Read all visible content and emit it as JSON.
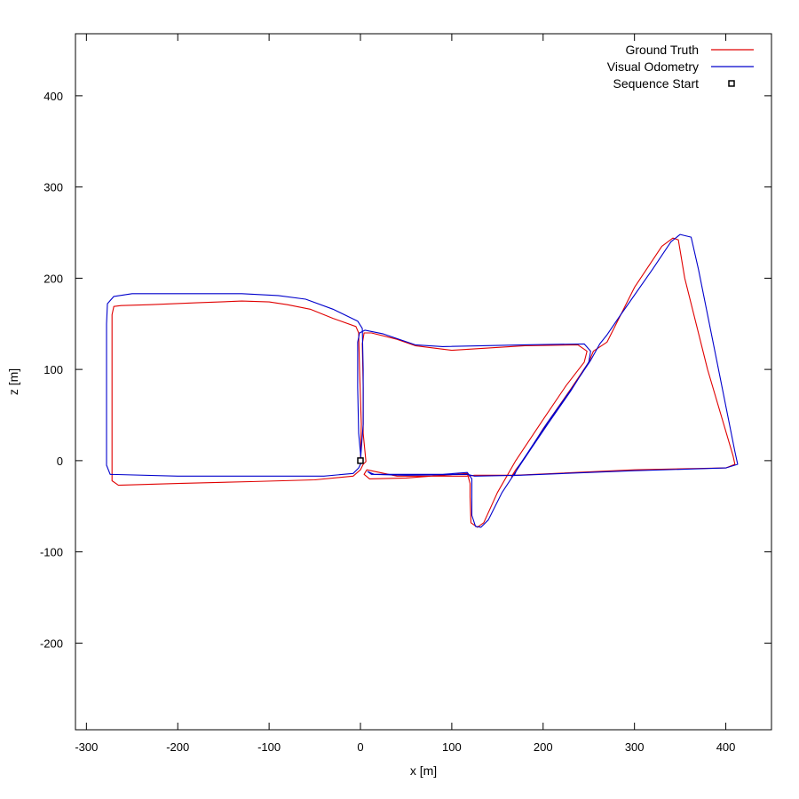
{
  "chart_data": {
    "type": "line",
    "title": "",
    "xlabel": "x [m]",
    "ylabel": "z [m]",
    "xlim": [
      -312,
      450
    ],
    "ylim": [
      -295,
      468
    ],
    "xticks": [
      -300,
      -200,
      -100,
      0,
      100,
      200,
      300,
      400
    ],
    "yticks": [
      -200,
      -100,
      0,
      100,
      200,
      300,
      400
    ],
    "grid": false,
    "legend_position": "top-right",
    "series": [
      {
        "name": "Ground Truth",
        "color": "#e00000",
        "points": [
          [
            0,
            0
          ],
          [
            1,
            40
          ],
          [
            -1,
            100
          ],
          [
            -2,
            140
          ],
          [
            -5,
            147
          ],
          [
            -30,
            156
          ],
          [
            -55,
            166
          ],
          [
            -80,
            171
          ],
          [
            -100,
            174
          ],
          [
            -130,
            175
          ],
          [
            -180,
            173
          ],
          [
            -230,
            171
          ],
          [
            -262,
            170
          ],
          [
            -270,
            169
          ],
          [
            -272,
            160
          ],
          [
            -272,
            100
          ],
          [
            -272,
            0
          ],
          [
            -272,
            -22
          ],
          [
            -265,
            -27
          ],
          [
            -200,
            -25
          ],
          [
            -120,
            -23
          ],
          [
            -50,
            -21
          ],
          [
            -8,
            -17
          ],
          [
            0,
            -10
          ],
          [
            3,
            -4
          ],
          [
            6,
            -1
          ],
          [
            3,
            30
          ],
          [
            3,
            80
          ],
          [
            2,
            128
          ],
          [
            4,
            140
          ],
          [
            12,
            140
          ],
          [
            40,
            133
          ],
          [
            60,
            126
          ],
          [
            100,
            121
          ],
          [
            180,
            126
          ],
          [
            238,
            127
          ],
          [
            248,
            120
          ],
          [
            245,
            108
          ],
          [
            225,
            82
          ],
          [
            200,
            45
          ],
          [
            170,
            0
          ],
          [
            150,
            -35
          ],
          [
            135,
            -68
          ],
          [
            128,
            -73
          ],
          [
            121,
            -68
          ],
          [
            120,
            -40
          ],
          [
            120,
            -25
          ],
          [
            117,
            -14
          ],
          [
            90,
            -16
          ],
          [
            50,
            -19
          ],
          [
            10,
            -20
          ],
          [
            4,
            -15
          ],
          [
            7,
            -10
          ],
          [
            40,
            -17
          ],
          [
            117,
            -17
          ],
          [
            125,
            -16
          ],
          [
            170,
            -16
          ],
          [
            300,
            -10
          ],
          [
            400,
            -8
          ],
          [
            410,
            -4
          ],
          [
            408,
            5
          ],
          [
            380,
            100
          ],
          [
            355,
            200
          ],
          [
            348,
            242
          ],
          [
            342,
            244
          ],
          [
            330,
            235
          ],
          [
            300,
            190
          ],
          [
            270,
            130
          ],
          [
            255,
            120
          ],
          [
            250,
            108
          ],
          [
            230,
            78
          ],
          [
            200,
            35
          ],
          [
            180,
            3
          ],
          [
            170,
            -10
          ],
          [
            165,
            -18
          ]
        ]
      },
      {
        "name": "Visual Odometry",
        "color": "#0000cc",
        "points": [
          [
            0,
            0
          ],
          [
            3,
            40
          ],
          [
            3,
            100
          ],
          [
            2,
            145
          ],
          [
            -3,
            153
          ],
          [
            -30,
            166
          ],
          [
            -60,
            177
          ],
          [
            -90,
            181
          ],
          [
            -130,
            183
          ],
          [
            -200,
            183
          ],
          [
            -250,
            183
          ],
          [
            -270,
            180
          ],
          [
            -277,
            172
          ],
          [
            -278,
            150
          ],
          [
            -278,
            50
          ],
          [
            -278,
            -5
          ],
          [
            -274,
            -15
          ],
          [
            -200,
            -17
          ],
          [
            -120,
            -17
          ],
          [
            -40,
            -17
          ],
          [
            -8,
            -14
          ],
          [
            -2,
            -8
          ],
          [
            1,
            -2
          ],
          [
            -2,
            30
          ],
          [
            -3,
            80
          ],
          [
            -3,
            130
          ],
          [
            -1,
            140
          ],
          [
            5,
            143
          ],
          [
            25,
            139
          ],
          [
            60,
            127
          ],
          [
            90,
            125
          ],
          [
            180,
            127
          ],
          [
            245,
            128
          ],
          [
            252,
            120
          ],
          [
            250,
            108
          ],
          [
            230,
            76
          ],
          [
            205,
            40
          ],
          [
            178,
            0
          ],
          [
            155,
            -35
          ],
          [
            140,
            -65
          ],
          [
            132,
            -73
          ],
          [
            126,
            -72
          ],
          [
            122,
            -60
          ],
          [
            122,
            -30
          ],
          [
            122,
            -20
          ],
          [
            117,
            -13
          ],
          [
            90,
            -15
          ],
          [
            50,
            -15
          ],
          [
            15,
            -15
          ],
          [
            8,
            -12
          ],
          [
            12,
            -15
          ],
          [
            50,
            -16
          ],
          [
            117,
            -15
          ],
          [
            125,
            -17
          ],
          [
            175,
            -16
          ],
          [
            300,
            -11
          ],
          [
            400,
            -8
          ],
          [
            413,
            -4
          ],
          [
            410,
            10
          ],
          [
            390,
            110
          ],
          [
            370,
            210
          ],
          [
            362,
            245
          ],
          [
            350,
            248
          ],
          [
            340,
            240
          ],
          [
            320,
            210
          ],
          [
            285,
            160
          ],
          [
            270,
            138
          ],
          [
            262,
            128
          ],
          [
            252,
            110
          ],
          [
            232,
            80
          ],
          [
            205,
            42
          ],
          [
            182,
            7
          ],
          [
            172,
            -8
          ],
          [
            168,
            -17
          ]
        ]
      }
    ],
    "markers": [
      {
        "name": "Sequence Start",
        "x": 0,
        "y": 0,
        "symbol": "square",
        "color": "#000000"
      }
    ]
  }
}
